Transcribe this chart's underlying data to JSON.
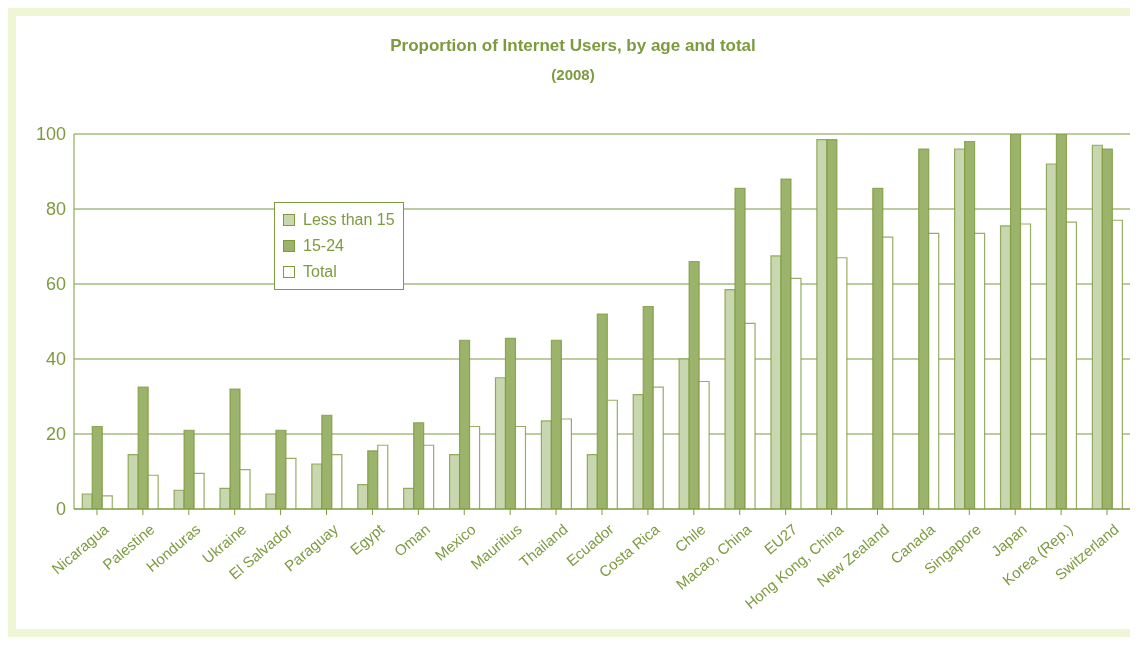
{
  "chart_data": {
    "type": "bar",
    "title": "Proportion of Internet Users, by age and total",
    "subtitle": "(2008)",
    "categories": [
      "Nicaragua",
      "Palestine",
      "Honduras",
      "Ukraine",
      "El Salvador",
      "Paraguay",
      "Egypt",
      "Oman",
      "Mexico",
      "Mauritius",
      "Thailand",
      "Ecuador",
      "Costa Rica",
      "Chile",
      "Macao, China",
      "EU27",
      "Hong Kong, China",
      "New Zealand",
      "Canada",
      "Singapore",
      "Japan",
      "Korea (Rep.)",
      "Switzerland"
    ],
    "series": [
      {
        "name": "Less than 15",
        "color": "#c9d7b0",
        "values": [
          4,
          14.5,
          5,
          5.5,
          4,
          12,
          6.5,
          5.5,
          14.5,
          35,
          23.5,
          14.5,
          30.5,
          40,
          58.5,
          67.5,
          98.5,
          null,
          null,
          96,
          75.5,
          92,
          97
        ]
      },
      {
        "name": "15-24",
        "color": "#9bb36a",
        "values": [
          22,
          32.5,
          21,
          32,
          21,
          25,
          15.5,
          23,
          45,
          45.5,
          45,
          52,
          54,
          66,
          85.5,
          88,
          98.5,
          85.5,
          96,
          98,
          100,
          100,
          96
        ]
      },
      {
        "name": "Total",
        "color": "#ffffff",
        "values": [
          3.5,
          9,
          9.5,
          10.5,
          13.5,
          14.5,
          17,
          17,
          22,
          22,
          24,
          29,
          32.5,
          34,
          49.5,
          61.5,
          67,
          72.5,
          73.5,
          73.5,
          76,
          76.5,
          77
        ]
      }
    ],
    "ylim": [
      0,
      100
    ],
    "yticks": [
      0,
      20,
      40,
      60,
      80,
      100
    ],
    "grid": "y",
    "legend": "top left"
  }
}
